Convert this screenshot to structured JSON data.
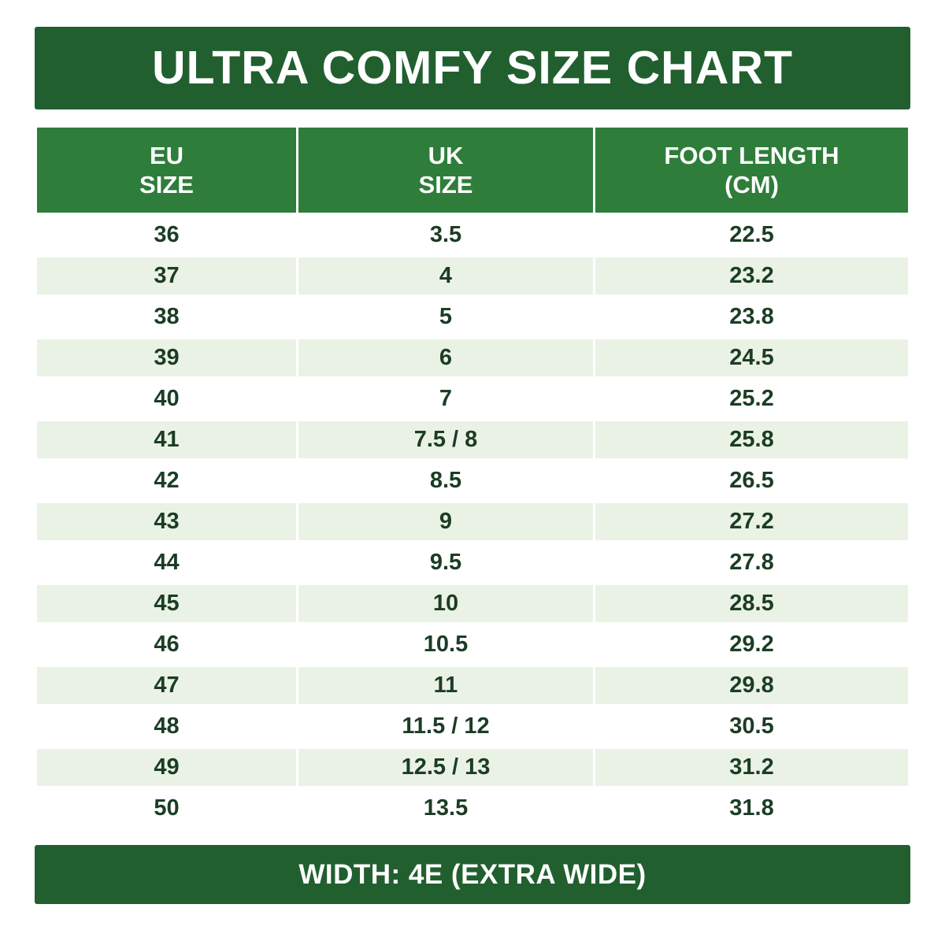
{
  "colors": {
    "banner_bg": "#215f2f",
    "header_bg": "#2e7d3a",
    "stripe_bg": "#eaf2e6",
    "cell_text": "#1b3d24",
    "header_text": "#ffffff"
  },
  "chart_data": {
    "type": "table",
    "title": "ULTRA COMFY SIZE CHART",
    "columns": [
      {
        "lines": [
          "EU",
          "SIZE"
        ]
      },
      {
        "lines": [
          "UK",
          "SIZE"
        ]
      },
      {
        "lines": [
          "FOOT LENGTH",
          "(CM)"
        ]
      }
    ],
    "rows": [
      [
        "36",
        "3.5",
        "22.5"
      ],
      [
        "37",
        "4",
        "23.2"
      ],
      [
        "38",
        "5",
        "23.8"
      ],
      [
        "39",
        "6",
        "24.5"
      ],
      [
        "40",
        "7",
        "25.2"
      ],
      [
        "41",
        "7.5 / 8",
        "25.8"
      ],
      [
        "42",
        "8.5",
        "26.5"
      ],
      [
        "43",
        "9",
        "27.2"
      ],
      [
        "44",
        "9.5",
        "27.8"
      ],
      [
        "45",
        "10",
        "28.5"
      ],
      [
        "46",
        "10.5",
        "29.2"
      ],
      [
        "47",
        "11",
        "29.8"
      ],
      [
        "48",
        "11.5 / 12",
        "30.5"
      ],
      [
        "49",
        "12.5 / 13",
        "31.2"
      ],
      [
        "50",
        "13.5",
        "31.8"
      ]
    ],
    "footer": "WIDTH: 4E (EXTRA WIDE)"
  }
}
